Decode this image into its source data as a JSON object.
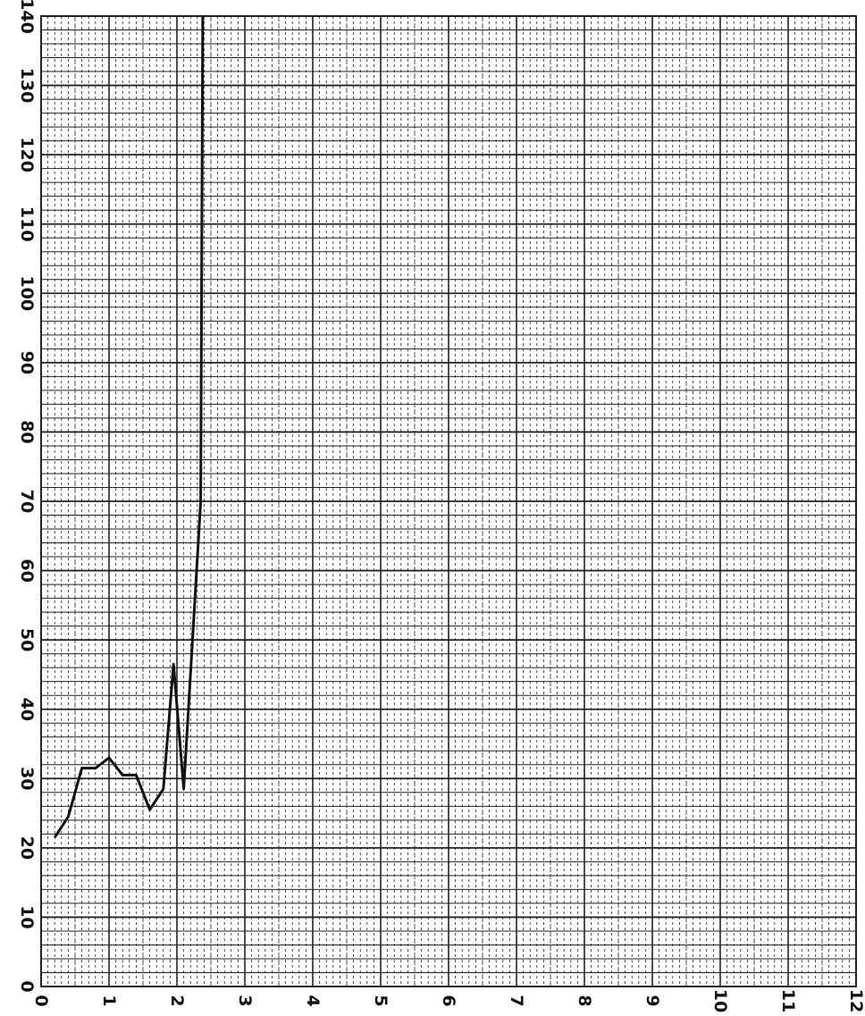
{
  "chart_data": {
    "type": "line",
    "title": "",
    "xlabel": "",
    "ylabel": "",
    "xlim": [
      0,
      12
    ],
    "ylim": [
      0,
      140
    ],
    "grid": true,
    "x_ticks": [
      "0",
      "1",
      "2",
      "3",
      "4",
      "5",
      "6",
      "7",
      "8",
      "9",
      "10",
      "11",
      "12"
    ],
    "y_ticks": [
      "0",
      "10",
      "20",
      "30",
      "40",
      "50",
      "60",
      "70",
      "80",
      "90",
      "100",
      "110",
      "120",
      "130",
      "140"
    ],
    "series": [
      {
        "x": [
          0.2,
          0.4,
          0.6,
          0.8,
          1.0,
          1.2,
          1.4,
          1.6,
          1.8,
          1.95,
          2.1,
          2.35,
          2.38
        ],
        "y": [
          21.5,
          24.5,
          31.5,
          31.5,
          33,
          30.5,
          30.5,
          25.5,
          28.5,
          46.5,
          28.5,
          70,
          140
        ]
      }
    ]
  },
  "colors": {
    "line": "#111111",
    "grid": "#222222",
    "background": "#ffffff"
  }
}
